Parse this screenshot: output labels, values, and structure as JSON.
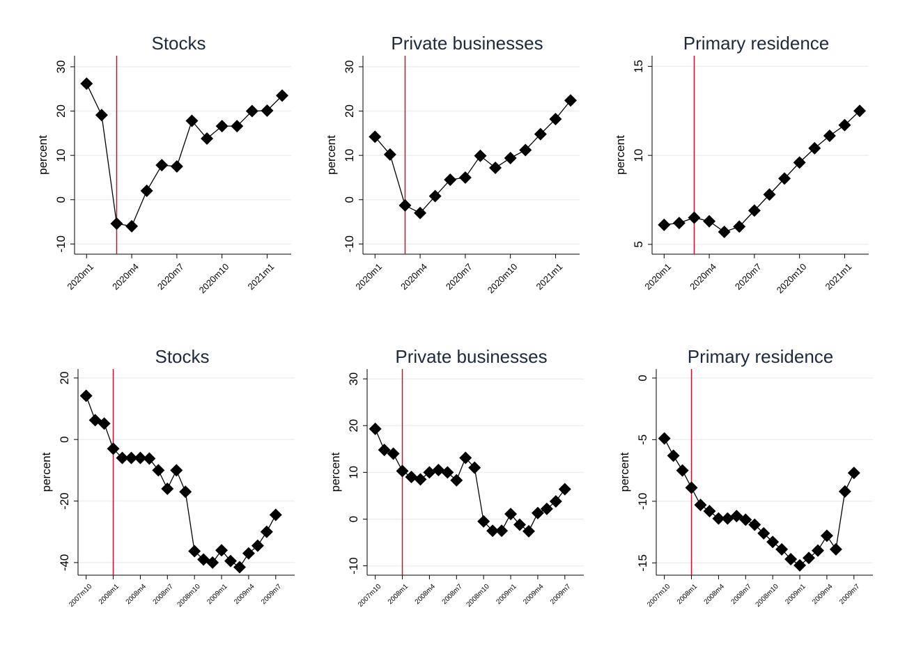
{
  "chart_data": [
    {
      "type": "line",
      "title": "Stocks",
      "y_label": "percent",
      "color": "#000000",
      "grid": true,
      "vline_x": 722,
      "vline_color": "#c8102e",
      "x": [
        720,
        721,
        722,
        723,
        724,
        725,
        726,
        727,
        728,
        729,
        730,
        731,
        732,
        733
      ],
      "values": [
        26.2,
        19.1,
        -5.4,
        -6,
        2,
        7.8,
        7.5,
        17.8,
        13.8,
        16.6,
        16.6,
        20,
        20.1,
        23.5
      ],
      "xlim": [
        719.2,
        733.6
      ],
      "xticks": [
        {
          "value": 720,
          "label": "2020m1"
        },
        {
          "value": 723,
          "label": "2020m4"
        },
        {
          "value": 726,
          "label": "2020m7"
        },
        {
          "value": 729,
          "label": "2020m10"
        },
        {
          "value": 732,
          "label": "2021m1"
        }
      ],
      "ylim": [
        -12.3,
        32.5
      ],
      "yticks": [
        -10,
        0,
        10,
        20,
        30
      ]
    },
    {
      "type": "line",
      "title": "Private businesses",
      "y_label": "percent",
      "color": "#000000",
      "grid": true,
      "vline_x": 722,
      "vline_color": "#c8102e",
      "x": [
        720,
        721,
        722,
        723,
        724,
        725,
        726,
        727,
        728,
        729,
        730,
        731,
        732,
        733
      ],
      "values": [
        14.2,
        10.2,
        -1.3,
        -3,
        0.8,
        4.5,
        5,
        9.9,
        7.2,
        9.4,
        11.2,
        14.8,
        18.2,
        22.4
      ],
      "xlim": [
        719.2,
        733.6
      ],
      "xticks": [
        {
          "value": 720,
          "label": "2020m1"
        },
        {
          "value": 723,
          "label": "2020m4"
        },
        {
          "value": 726,
          "label": "2020m7"
        },
        {
          "value": 729,
          "label": "2020m10"
        },
        {
          "value": 732,
          "label": "2021m1"
        }
      ],
      "ylim": [
        -12.3,
        32.5
      ],
      "yticks": [
        -10,
        0,
        10,
        20,
        30
      ]
    },
    {
      "type": "line",
      "title": "Primary residence",
      "y_label": "percent",
      "color": "#000000",
      "grid": true,
      "vline_x": 722,
      "vline_color": "#c8102e",
      "x": [
        720,
        721,
        722,
        723,
        724,
        725,
        726,
        727,
        728,
        729,
        730,
        731,
        732,
        733
      ],
      "values": [
        6.1,
        6.2,
        6.5,
        6.3,
        5.7,
        6,
        6.9,
        7.8,
        8.7,
        9.6,
        10.4,
        11.1,
        11.7,
        12.5
      ],
      "xlim": [
        719.2,
        733.6
      ],
      "xticks": [
        {
          "value": 720,
          "label": "2020m1"
        },
        {
          "value": 723,
          "label": "2020m4"
        },
        {
          "value": 726,
          "label": "2020m7"
        },
        {
          "value": 729,
          "label": "2020m10"
        },
        {
          "value": 732,
          "label": "2021m1"
        }
      ],
      "ylim": [
        4.45,
        15.6
      ],
      "yticks": [
        5,
        10,
        15
      ]
    },
    {
      "type": "line",
      "title": "Stocks",
      "y_label": "percent",
      "color": "#000000",
      "grid": true,
      "vline_x": 576,
      "vline_color": "#c8102e",
      "x": [
        573,
        574,
        575,
        576,
        577,
        578,
        579,
        580,
        581,
        582,
        583,
        584,
        585,
        586,
        587,
        588,
        589,
        590,
        591,
        592,
        593,
        594
      ],
      "values": [
        14.2,
        6.3,
        5.2,
        -3,
        -6,
        -6,
        -6,
        -6.2,
        -10,
        -16,
        -10,
        -17,
        -36.3,
        -39,
        -40,
        -36,
        -39.5,
        -41.5,
        -37,
        -34.5,
        -30,
        -24.5
      ],
      "xlim": [
        572.1,
        596.1
      ],
      "xticks": [
        {
          "value": 573,
          "label": "2007m10"
        },
        {
          "value": 576,
          "label": "2008m1"
        },
        {
          "value": 579,
          "label": "2008m4"
        },
        {
          "value": 582,
          "label": "2008m7"
        },
        {
          "value": 585,
          "label": "2008m10"
        },
        {
          "value": 588,
          "label": "2009m1"
        },
        {
          "value": 591,
          "label": "2009m4"
        },
        {
          "value": 594,
          "label": "2009m7"
        }
      ],
      "ylim": [
        -44.1,
        22.9
      ],
      "yticks": [
        -40,
        -20,
        0,
        20
      ]
    },
    {
      "type": "line",
      "title": "Private businesses",
      "y_label": "percent",
      "color": "#000000",
      "grid": true,
      "vline_x": 576,
      "vline_color": "#c8102e",
      "x": [
        573,
        574,
        575,
        576,
        577,
        578,
        579,
        580,
        581,
        582,
        583,
        584,
        585,
        586,
        587,
        588,
        589,
        590,
        591,
        592,
        593,
        594
      ],
      "values": [
        19.3,
        14.8,
        14,
        10.3,
        9,
        8.5,
        10,
        10.5,
        10,
        8.3,
        13.1,
        11,
        -0.5,
        -2.5,
        -2.5,
        1.1,
        -1.2,
        -2.6,
        1.3,
        2.2,
        3.8,
        6.4
      ],
      "xlim": [
        572.1,
        596.1
      ],
      "xticks": [
        {
          "value": 573,
          "label": "2007m10"
        },
        {
          "value": 576,
          "label": "2008m1"
        },
        {
          "value": 579,
          "label": "2008m4"
        },
        {
          "value": 582,
          "label": "2008m7"
        },
        {
          "value": 585,
          "label": "2008m10"
        },
        {
          "value": 588,
          "label": "2009m1"
        },
        {
          "value": 591,
          "label": "2009m4"
        },
        {
          "value": 594,
          "label": "2009m7"
        }
      ],
      "ylim": [
        -12,
        32.1
      ],
      "yticks": [
        -10,
        0,
        10,
        20,
        30
      ]
    },
    {
      "type": "line",
      "title": "Primary residence",
      "y_label": "percent",
      "color": "#000000",
      "grid": true,
      "vline_x": 576,
      "vline_color": "#c8102e",
      "x": [
        573,
        574,
        575,
        576,
        577,
        578,
        579,
        580,
        581,
        582,
        583,
        584,
        585,
        586,
        587,
        588,
        589,
        590,
        591,
        592,
        593,
        594
      ],
      "values": [
        -4.9,
        -6.3,
        -7.5,
        -8.9,
        -10.3,
        -10.8,
        -11.4,
        -11.4,
        -11.2,
        -11.5,
        -11.9,
        -12.6,
        -13.3,
        -13.9,
        -14.7,
        -15.2,
        -14.6,
        -14,
        -12.8,
        -13.9,
        -9.2,
        -7.7
      ],
      "xlim": [
        572.1,
        596.1
      ],
      "xticks": [
        {
          "value": 573,
          "label": "2007m10"
        },
        {
          "value": 576,
          "label": "2008m1"
        },
        {
          "value": 579,
          "label": "2008m4"
        },
        {
          "value": 582,
          "label": "2008m7"
        },
        {
          "value": 585,
          "label": "2008m10"
        },
        {
          "value": 588,
          "label": "2009m1"
        },
        {
          "value": 591,
          "label": "2009m4"
        },
        {
          "value": 594,
          "label": "2009m7"
        }
      ],
      "ylim": [
        -16,
        0.73
      ],
      "yticks": [
        -15,
        -10,
        -5,
        0
      ]
    }
  ]
}
